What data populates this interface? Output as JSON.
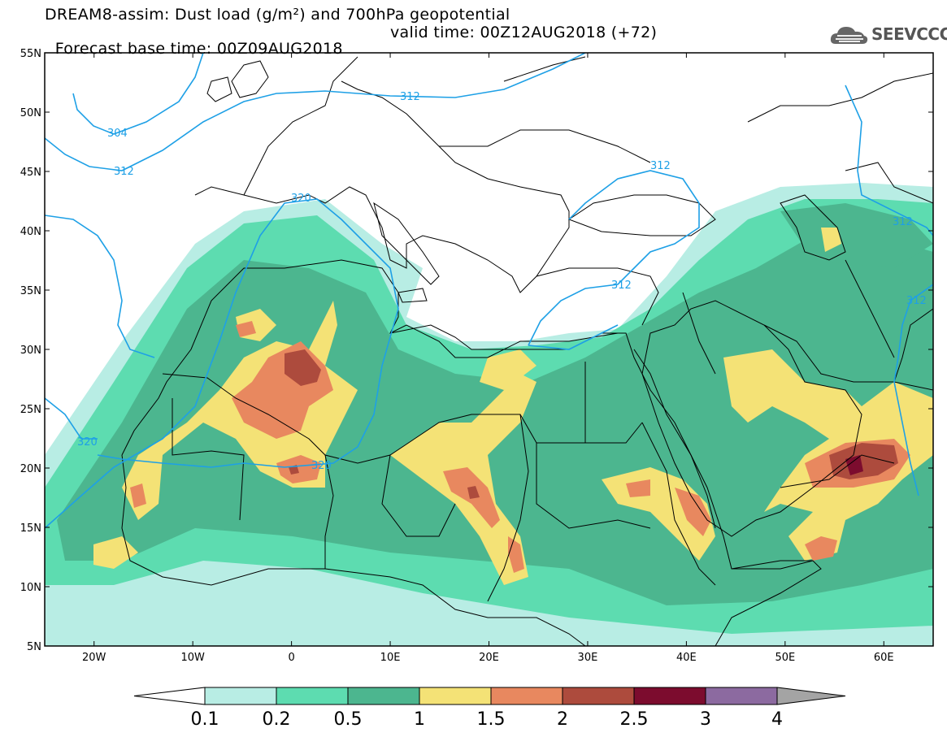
{
  "title": {
    "line1": "DREAM8-assim: Dust load (g/m²) and 700hPa geopotential",
    "line2_base": "Forecast base time: 00Z09AUG2018",
    "line2_valid": "valid time: 00Z12AUG2018 (+72)"
  },
  "logo": {
    "text": "SEEVCCC",
    "icon": "cloud-icon"
  },
  "axes": {
    "lat_labels": [
      "55N",
      "50N",
      "45N",
      "40N",
      "35N",
      "30N",
      "25N",
      "20N",
      "15N",
      "10N",
      "5N"
    ],
    "lat_values": [
      55,
      50,
      45,
      40,
      35,
      30,
      25,
      20,
      15,
      10,
      5
    ],
    "lon_labels": [
      "20W",
      "10W",
      "0",
      "10E",
      "20E",
      "30E",
      "40E",
      "50E",
      "60E"
    ],
    "lon_values": [
      -20,
      -10,
      0,
      10,
      20,
      30,
      40,
      50,
      60
    ],
    "lon_range": [
      -25,
      65
    ],
    "lat_range": [
      5,
      55
    ]
  },
  "contours": {
    "labels": [
      "304",
      "312",
      "312",
      "320",
      "312",
      "312",
      "320",
      "320",
      "312",
      "312"
    ],
    "color": "#1ea0e6"
  },
  "colorbar": {
    "labels": [
      "0.1",
      "0.2",
      "0.5",
      "1",
      "1.5",
      "2",
      "2.5",
      "3",
      "4"
    ],
    "colors": [
      "#b8ede4",
      "#5ddcb0",
      "#4cb68f",
      "#f4e276",
      "#e8885f",
      "#ad4b3d",
      "#7c0c2e",
      "#8c6aa0",
      "#a4a4a4"
    ],
    "under_color": "#ffffff"
  }
}
